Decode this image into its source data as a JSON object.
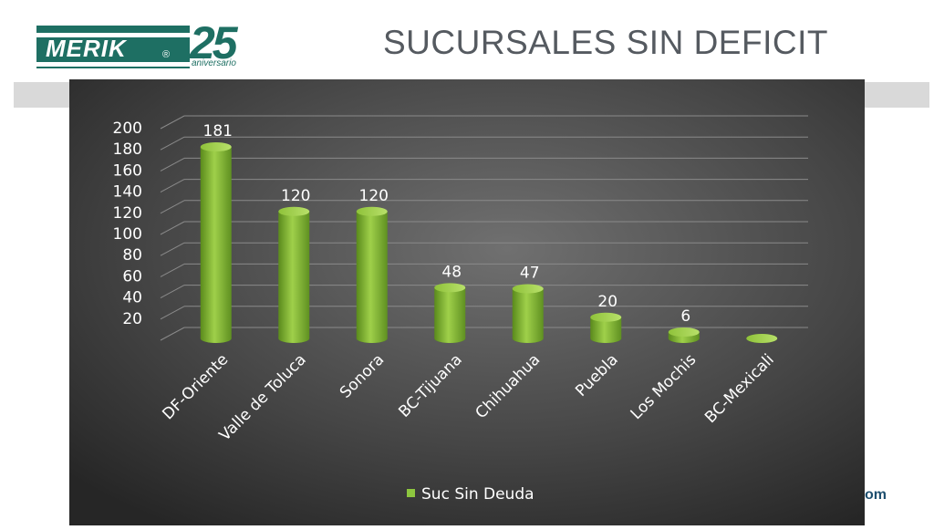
{
  "header": {
    "logo_text": "MERIK",
    "logo_number": "25",
    "logo_subtitle": "aniversario",
    "title": "SUCURSALES SIN DEFICIT"
  },
  "footer_fragment": "om",
  "colors": {
    "brand": "#1e6f63",
    "bar": "#8dc63f",
    "panel_dark": "#2b2b2b",
    "panel_light": "#6a6a6a"
  },
  "chart_data": {
    "type": "bar",
    "categories": [
      "DF-Oriente",
      "Valle de Toluca",
      "Sonora",
      "BC-Tijuana",
      "Chihuahua",
      "Puebla",
      "Los Mochis",
      "BC-Mexicali"
    ],
    "series": [
      {
        "name": "Suc Sin Deuda",
        "values": [
          181,
          120,
          120,
          48,
          47,
          20,
          6,
          0
        ]
      }
    ],
    "data_labels": [
      "181",
      "120",
      "120",
      "48",
      "47",
      "20",
      "6",
      ""
    ],
    "y_ticks": [
      20,
      40,
      60,
      80,
      100,
      120,
      140,
      160,
      180,
      200
    ],
    "ylim": [
      0,
      200
    ],
    "grid": true,
    "legend": "bottom",
    "title": "",
    "xlabel": "",
    "ylabel": ""
  }
}
